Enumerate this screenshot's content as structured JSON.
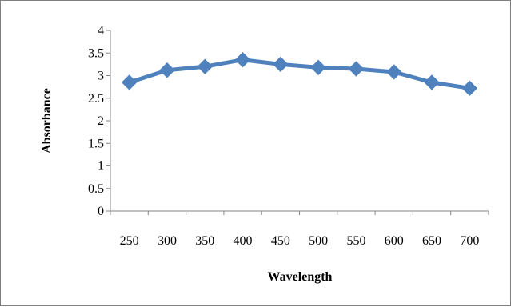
{
  "chart_data": {
    "type": "line",
    "title": "",
    "xlabel": "Wavelength",
    "ylabel": "Absorbance",
    "categories": [
      "250",
      "300",
      "350",
      "400",
      "450",
      "500",
      "550",
      "600",
      "650",
      "700"
    ],
    "series": [
      {
        "values": [
          2.85,
          3.12,
          3.2,
          3.35,
          3.25,
          3.18,
          3.15,
          3.08,
          2.85,
          2.72
        ],
        "color": "#4f81bd",
        "marker": "diamond"
      }
    ],
    "ylim": [
      0,
      4
    ],
    "yticks": [
      "0",
      "0.5",
      "1",
      "1.5",
      "2",
      "2.5",
      "3",
      "3.5",
      "4"
    ],
    "grid": false,
    "legend": "none"
  }
}
